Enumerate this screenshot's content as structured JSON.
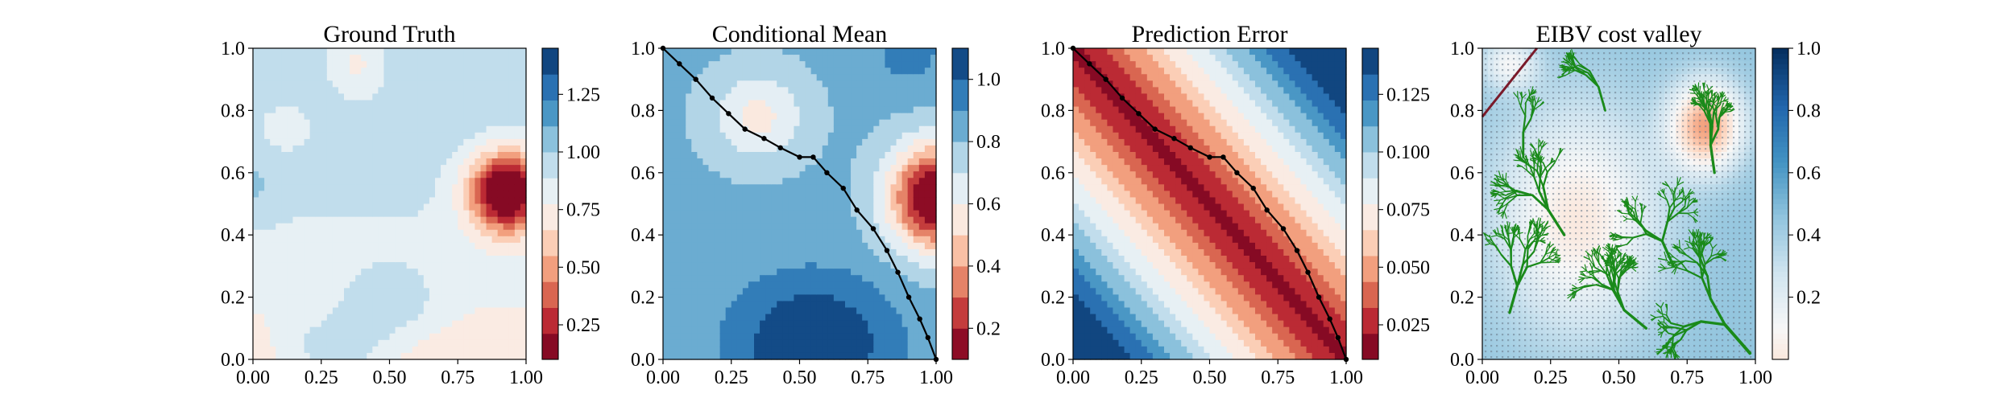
{
  "chart_data": [
    {
      "type": "heatmap",
      "title": "Ground Truth",
      "xlim": [
        0,
        1
      ],
      "ylim": [
        0,
        1
      ],
      "x_ticks": [
        "0.00",
        "0.25",
        "0.50",
        "0.75",
        "1.00"
      ],
      "y_ticks": [
        "0.0",
        "0.2",
        "0.4",
        "0.6",
        "0.8",
        "1.0"
      ],
      "colormap": "RdBu",
      "colorbar": {
        "range": [
          0.1,
          1.45
        ],
        "levels": 12,
        "ticks": [
          "0.25",
          "0.50",
          "0.75",
          "1.00",
          "1.25"
        ]
      },
      "field": "smooth field, low region near (0.92, 0.55), high region along bottom edge near (0.3, 0.0) and (0.45, 0.2)"
    },
    {
      "type": "heatmap",
      "title": "Conditional Mean",
      "xlim": [
        0,
        1
      ],
      "ylim": [
        0,
        1
      ],
      "x_ticks": [
        "0.00",
        "0.25",
        "0.50",
        "0.75",
        "1.00"
      ],
      "y_ticks": [
        "0.0",
        "0.2",
        "0.4",
        "0.6",
        "0.8",
        "1.0"
      ],
      "colormap": "RdBu",
      "colorbar": {
        "range": [
          0.1,
          1.1
        ],
        "levels": 10,
        "ticks": [
          "0.2",
          "0.4",
          "0.6",
          "0.8",
          "1.0"
        ]
      },
      "path": {
        "x": [
          0.0,
          0.06,
          0.12,
          0.18,
          0.24,
          0.3,
          0.37,
          0.43,
          0.5,
          0.55,
          0.6,
          0.66,
          0.71,
          0.77,
          0.82,
          0.86,
          0.9,
          0.94,
          0.97,
          1.0
        ],
        "y": [
          1.0,
          0.95,
          0.9,
          0.84,
          0.79,
          0.74,
          0.71,
          0.68,
          0.65,
          0.65,
          0.6,
          0.55,
          0.48,
          0.42,
          0.35,
          0.28,
          0.2,
          0.13,
          0.07,
          0.0
        ]
      }
    },
    {
      "type": "heatmap",
      "title": "Prediction Error",
      "xlim": [
        0,
        1
      ],
      "ylim": [
        0,
        1
      ],
      "x_ticks": [
        "0.00",
        "0.25",
        "0.50",
        "0.75",
        "1.00"
      ],
      "y_ticks": [
        "0.0",
        "0.2",
        "0.4",
        "0.6",
        "0.8",
        "1.0"
      ],
      "colormap": "RdBu",
      "colorbar": {
        "range": [
          0.01,
          0.145
        ],
        "levels": 12,
        "ticks": [
          "0.025",
          "0.050",
          "0.075",
          "0.100",
          "0.125"
        ]
      },
      "path": {
        "x": [
          0.0,
          0.06,
          0.12,
          0.18,
          0.24,
          0.3,
          0.37,
          0.43,
          0.5,
          0.55,
          0.6,
          0.66,
          0.71,
          0.77,
          0.82,
          0.86,
          0.9,
          0.94,
          0.97,
          1.0
        ],
        "y": [
          1.0,
          0.95,
          0.9,
          0.84,
          0.79,
          0.74,
          0.71,
          0.68,
          0.65,
          0.65,
          0.6,
          0.55,
          0.48,
          0.42,
          0.35,
          0.28,
          0.2,
          0.13,
          0.07,
          0.0
        ]
      }
    },
    {
      "type": "heatmap",
      "title": "EIBV cost valley",
      "xlim": [
        0,
        1
      ],
      "ylim": [
        0,
        1
      ],
      "x_ticks": [
        "0.00",
        "0.25",
        "0.50",
        "0.75",
        "1.00"
      ],
      "y_ticks": [
        "0.0",
        "0.2",
        "0.4",
        "0.6",
        "0.8",
        "1.0"
      ],
      "colormap": "RdBu",
      "colorbar": {
        "range": [
          0.0,
          1.0
        ],
        "ticks": [
          "0.2",
          "0.4",
          "0.6",
          "0.8",
          "1.0"
        ]
      },
      "overlay": "random tree of green branches covering the domain; short dark red segment from (0.0, 0.78) to (0.2, 1.0)"
    }
  ]
}
